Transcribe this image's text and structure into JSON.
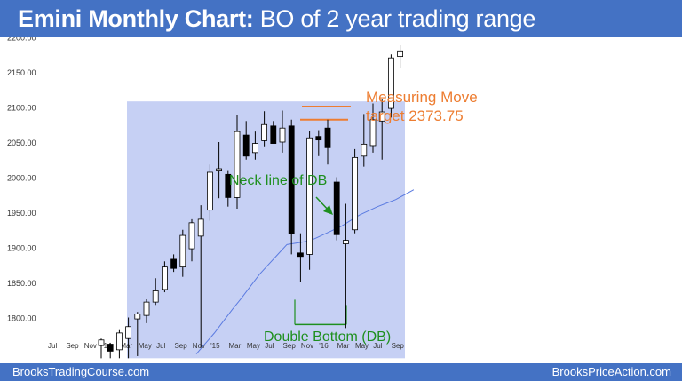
{
  "title": {
    "bold": "Emini Monthly Chart:",
    "rest": " BO of 2 year trading range"
  },
  "footer": {
    "left": "BrooksTradingCourse.com",
    "right": "BrooksPriceAction.com"
  },
  "colors": {
    "header": "#4472c4",
    "range_box": "#c6d0f4",
    "ma_line": "#5b7be0",
    "annotation_orange": "#ed7d31",
    "annotation_green": "#1e8f1e",
    "bear_body": "#000000",
    "bull_body": "#ffffff"
  },
  "chart_data": {
    "type": "candlestick",
    "title": "",
    "xlabel": "",
    "ylabel": "",
    "ylim": [
      1740,
      2215
    ],
    "yticks": [
      "1800.00",
      "1850.00",
      "1900.00",
      "1950.00",
      "2000.00",
      "2050.00",
      "2100.00",
      "2150.00",
      "2200.00"
    ],
    "xticks": [
      "Jul",
      "Sep",
      "Nov",
      "'14",
      "Mar",
      "May",
      "Jul",
      "Sep",
      "Nov",
      "'15",
      "Mar",
      "May",
      "Jul",
      "Sep",
      "Nov",
      "'16",
      "Mar",
      "May",
      "Jul",
      "Sep"
    ],
    "candles": [
      {
        "o": 1760,
        "h": 1770,
        "l": 1742,
        "c": 1768
      },
      {
        "o": 1762,
        "h": 1764,
        "l": 1742,
        "c": 1752
      },
      {
        "o": 1754,
        "h": 1782,
        "l": 1742,
        "c": 1778
      },
      {
        "o": 1770,
        "h": 1800,
        "l": 1742,
        "c": 1787
      },
      {
        "o": 1798,
        "h": 1808,
        "l": 1745,
        "c": 1805
      },
      {
        "o": 1803,
        "h": 1826,
        "l": 1792,
        "c": 1822
      },
      {
        "o": 1822,
        "h": 1856,
        "l": 1818,
        "c": 1838
      },
      {
        "o": 1840,
        "h": 1880,
        "l": 1836,
        "c": 1872
      },
      {
        "o": 1883,
        "h": 1890,
        "l": 1865,
        "c": 1870
      },
      {
        "o": 1872,
        "h": 1925,
        "l": 1858,
        "c": 1917
      },
      {
        "o": 1898,
        "h": 1940,
        "l": 1880,
        "c": 1935
      },
      {
        "o": 1916,
        "h": 1960,
        "l": 1757,
        "c": 1940
      },
      {
        "o": 1953,
        "h": 2018,
        "l": 1938,
        "c": 2007
      },
      {
        "o": 2010,
        "h": 2050,
        "l": 1970,
        "c": 2012
      },
      {
        "o": 2004,
        "h": 2010,
        "l": 1958,
        "c": 1971
      },
      {
        "o": 1971,
        "h": 2088,
        "l": 1955,
        "c": 2065
      },
      {
        "o": 2060,
        "h": 2080,
        "l": 2025,
        "c": 2030
      },
      {
        "o": 2035,
        "h": 2065,
        "l": 2025,
        "c": 2048
      },
      {
        "o": 2052,
        "h": 2094,
        "l": 2044,
        "c": 2075
      },
      {
        "o": 2073,
        "h": 2080,
        "l": 2050,
        "c": 2048
      },
      {
        "o": 2050,
        "h": 2095,
        "l": 2035,
        "c": 2070
      },
      {
        "o": 2073,
        "h": 2082,
        "l": 1890,
        "c": 1920
      },
      {
        "o": 1892,
        "h": 1920,
        "l": 1850,
        "c": 1887
      },
      {
        "o": 1890,
        "h": 2066,
        "l": 1868,
        "c": 2056
      },
      {
        "o": 2058,
        "h": 2067,
        "l": 2030,
        "c": 2053
      },
      {
        "o": 2070,
        "h": 2082,
        "l": 2018,
        "c": 2042
      },
      {
        "o": 1993,
        "h": 2000,
        "l": 1910,
        "c": 1918
      },
      {
        "o": 1905,
        "h": 1962,
        "l": 1785,
        "c": 1910
      },
      {
        "o": 1925,
        "h": 2040,
        "l": 1920,
        "c": 2028
      },
      {
        "o": 2030,
        "h": 2090,
        "l": 2015,
        "c": 2047
      },
      {
        "o": 2045,
        "h": 2105,
        "l": 2035,
        "c": 2082
      },
      {
        "o": 2080,
        "h": 2112,
        "l": 2025,
        "c": 2093
      },
      {
        "o": 2098,
        "h": 2175,
        "l": 2085,
        "c": 2170
      },
      {
        "o": 2172,
        "h": 2188,
        "l": 2155,
        "c": 2180
      }
    ],
    "moving_average": [
      1748,
      1763,
      1778,
      1795,
      1812,
      1828,
      1845,
      1862,
      1876,
      1890,
      1904,
      1906,
      1908,
      1912,
      1918,
      1924,
      1930,
      1938,
      1946,
      1952,
      1958,
      1963,
      1968,
      1975,
      1982
    ],
    "range_box": {
      "low": 1742,
      "high": 2108
    },
    "neckline": 2082,
    "double_bottom_level": 1790,
    "measuring_move_target": 2373.75
  },
  "annotations": {
    "measuring_move_line1": "Measuring Move",
    "measuring_move_line2": "target 2373.75",
    "neckline": "Neck line of DB",
    "double_bottom": "Double Bottom (DB)"
  }
}
